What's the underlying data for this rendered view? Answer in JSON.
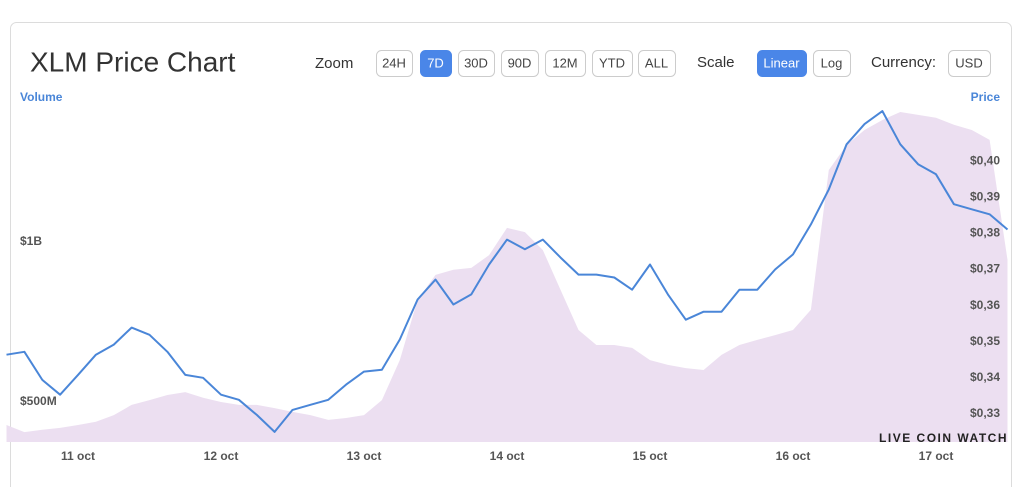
{
  "ui": {
    "zoom_label": "Zoom",
    "zoom_options": [
      "24H",
      "7D",
      "30D",
      "90D",
      "12M",
      "YTD",
      "ALL"
    ],
    "zoom_selected": 1,
    "scale_label": "Scale",
    "scale_options": [
      "Linear",
      "Log"
    ],
    "scale_selected": 0,
    "currency_label": "Currency:",
    "currency": "USD",
    "watermark": "LIVE COIN WATCH"
  },
  "chart_data": {
    "type": "line",
    "title": "XLM Price Chart",
    "categories": [
      null,
      null,
      null,
      null,
      "11 oct",
      null,
      null,
      null,
      null,
      null,
      null,
      null,
      "12 oct",
      null,
      null,
      null,
      null,
      null,
      null,
      null,
      "13 oct",
      null,
      null,
      null,
      null,
      null,
      null,
      null,
      "14 oct",
      null,
      null,
      null,
      null,
      null,
      null,
      null,
      "15 oct",
      null,
      null,
      null,
      null,
      null,
      null,
      null,
      "16 oct",
      null,
      null,
      null,
      null,
      null,
      null,
      null,
      "17 oct",
      null,
      null,
      null,
      null
    ],
    "series": [
      {
        "name": "Volume",
        "color": "#ecdff1",
        "axis": "y",
        "style": "area",
        "values": [
          428000000,
          406000000,
          413000000,
          419000000,
          428000000,
          438000000,
          459000000,
          491000000,
          506000000,
          522000000,
          531000000,
          513000000,
          500000000,
          491000000,
          491000000,
          481000000,
          469000000,
          459000000,
          444000000,
          450000000,
          459000000,
          506000000,
          631000000,
          819000000,
          897000000,
          913000000,
          919000000,
          959000000,
          1044000000,
          1031000000,
          975000000,
          850000000,
          725000000,
          678000000,
          678000000,
          669000000,
          631000000,
          616000000,
          606000000,
          600000000,
          647000000,
          678000000,
          694000000,
          709000000,
          725000000,
          788000000,
          1225000000,
          1303000000,
          1350000000,
          1381000000,
          1406000000,
          1397000000,
          1388000000,
          1366000000,
          1350000000,
          1319000000,
          944000000
        ]
      },
      {
        "name": "Price",
        "color": "#4a86d8",
        "axis": "y2",
        "style": "line",
        "values": [
          0.3464,
          0.3472,
          0.3394,
          0.3353,
          0.3408,
          0.3464,
          0.3492,
          0.3539,
          0.3519,
          0.3472,
          0.3408,
          0.34,
          0.3353,
          0.3339,
          0.3297,
          0.325,
          0.3311,
          0.3325,
          0.3339,
          0.3381,
          0.3417,
          0.3422,
          0.3506,
          0.3617,
          0.3672,
          0.3603,
          0.3631,
          0.3714,
          0.3783,
          0.3756,
          0.3783,
          0.3733,
          0.3686,
          0.3686,
          0.3678,
          0.3644,
          0.3714,
          0.3631,
          0.3561,
          0.3583,
          0.3583,
          0.3644,
          0.3644,
          0.37,
          0.3742,
          0.3825,
          0.3922,
          0.4047,
          0.4103,
          0.4139,
          0.4047,
          0.3992,
          0.3964,
          0.3881,
          0.3867,
          0.3853,
          0.3811
        ]
      }
    ],
    "ylim": [
      375000000,
      1428000000
    ],
    "yticks": [
      {
        "value": 500000000,
        "label": "$500M"
      },
      {
        "value": 1000000000,
        "label": "$1B"
      }
    ],
    "y2lim": [
      0.3222,
      0.4156
    ],
    "y2ticks": [
      {
        "value": 0.33,
        "label": "$0,33"
      },
      {
        "value": 0.34,
        "label": "$0,34"
      },
      {
        "value": 0.35,
        "label": "$0,35"
      },
      {
        "value": 0.36,
        "label": "$0,36"
      },
      {
        "value": 0.37,
        "label": "$0,37"
      },
      {
        "value": 0.38,
        "label": "$0,38"
      },
      {
        "value": 0.39,
        "label": "$0,39"
      },
      {
        "value": 0.4,
        "label": "$0,40"
      }
    ],
    "grid": false
  }
}
